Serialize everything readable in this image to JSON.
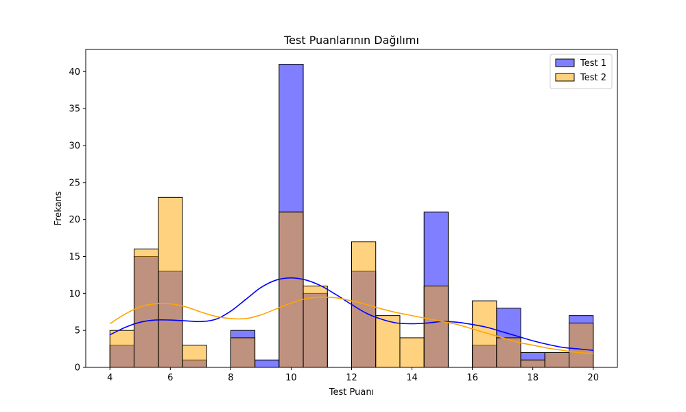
{
  "chart_data": {
    "type": "histogram",
    "title": "Test Puanlarının Dağılımı",
    "xlabel": "Test Puanı",
    "ylabel": "Frekans",
    "xlim": [
      3.2,
      20.8
    ],
    "ylim": [
      0,
      43
    ],
    "xticks": [
      4,
      6,
      8,
      10,
      12,
      14,
      16,
      18,
      20
    ],
    "yticks": [
      0,
      5,
      10,
      15,
      20,
      25,
      30,
      35,
      40
    ],
    "bin_edges": [
      4.0,
      4.8,
      5.6,
      6.4,
      7.2,
      8.0,
      8.8,
      9.6,
      10.4,
      11.2,
      12.0,
      12.8,
      13.6,
      14.4,
      15.2,
      16.0,
      16.8,
      17.6,
      18.4,
      19.2,
      20.0
    ],
    "grid": false,
    "legend_position": "top-right",
    "series": [
      {
        "name": "Test 1",
        "color": "#0000ff",
        "counts": [
          3,
          15,
          13,
          1,
          0,
          5,
          1,
          41,
          10,
          0,
          13,
          0,
          0,
          21,
          0,
          3,
          8,
          2,
          2,
          7
        ],
        "kde": {
          "x": [
            4,
            4.5,
            5,
            5.5,
            6,
            6.5,
            7,
            7.5,
            8,
            8.5,
            9,
            9.5,
            10,
            10.5,
            11,
            11.5,
            12,
            12.5,
            13,
            13.5,
            14,
            14.5,
            15,
            15.5,
            16,
            16.5,
            17,
            17.5,
            18,
            18.5,
            19,
            19.5,
            20
          ],
          "y": [
            4.4,
            5.4,
            6.1,
            6.4,
            6.4,
            6.3,
            6.2,
            6.5,
            7.6,
            9.2,
            10.8,
            11.8,
            12.1,
            11.8,
            11.0,
            9.8,
            8.5,
            7.3,
            6.5,
            6.0,
            5.9,
            6.0,
            6.2,
            6.1,
            5.8,
            5.4,
            4.8,
            4.2,
            3.6,
            3.1,
            2.7,
            2.5,
            2.3
          ]
        }
      },
      {
        "name": "Test 2",
        "color": "#ffa500",
        "counts": [
          5,
          16,
          23,
          3,
          0,
          4,
          0,
          21,
          11,
          0,
          17,
          7,
          4,
          11,
          0,
          9,
          4,
          1,
          2,
          6
        ],
        "kde": {
          "x": [
            4,
            4.5,
            5,
            5.5,
            6,
            6.5,
            7,
            7.5,
            8,
            8.5,
            9,
            9.5,
            10,
            10.5,
            11,
            11.5,
            12,
            12.5,
            13,
            13.5,
            14,
            14.5,
            15,
            15.5,
            16,
            16.5,
            17,
            17.5,
            18,
            18.5,
            19,
            19.5,
            20
          ],
          "y": [
            5.9,
            7.2,
            8.2,
            8.6,
            8.6,
            8.2,
            7.5,
            6.9,
            6.6,
            6.6,
            7.1,
            7.9,
            8.7,
            9.3,
            9.5,
            9.4,
            9.0,
            8.5,
            7.9,
            7.4,
            7.0,
            6.6,
            6.2,
            5.8,
            5.2,
            4.6,
            4.0,
            3.4,
            3.0,
            2.6,
            2.3,
            2.0,
            1.9
          ]
        }
      }
    ]
  }
}
